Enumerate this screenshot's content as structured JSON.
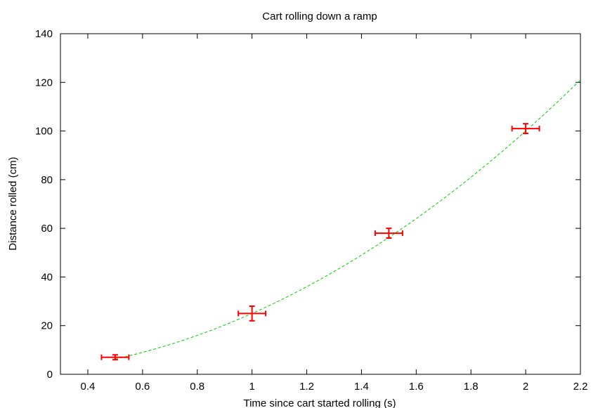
{
  "chart_data": {
    "type": "scatter",
    "title": "Cart rolling down a ramp",
    "xlabel": "Time since cart started rolling (s)",
    "ylabel": "Distance rolled (cm)",
    "xlim": [
      0.3,
      2.2
    ],
    "ylim": [
      0,
      140
    ],
    "xticks": [
      0.4,
      0.6,
      0.8,
      1,
      1.2,
      1.4,
      1.6,
      1.8,
      2,
      2.2
    ],
    "xtick_labels": [
      "0.4",
      "0.6",
      "0.8",
      "1",
      "1.2",
      "1.4",
      "1.6",
      "1.8",
      "2",
      "2.2"
    ],
    "yticks": [
      0,
      20,
      40,
      60,
      80,
      100,
      120,
      140
    ],
    "ytick_labels": [
      "0",
      "20",
      "40",
      "60",
      "80",
      "100",
      "120",
      "140"
    ],
    "grid": false,
    "legend": "none",
    "series": [
      {
        "kind": "errorbars",
        "color": "#ff0000",
        "x": [
          0.5,
          1.0,
          1.5,
          2.0
        ],
        "y": [
          7,
          25,
          58,
          101
        ],
        "xerr": [
          0.05,
          0.05,
          0.05,
          0.05
        ],
        "yerr": [
          1,
          3,
          2,
          2
        ]
      },
      {
        "kind": "fit-curve",
        "color": "#00cc00",
        "style": "dashed",
        "equation": "y = 25*x^2",
        "x_start": 0.5,
        "x_end": 2.2
      }
    ]
  }
}
